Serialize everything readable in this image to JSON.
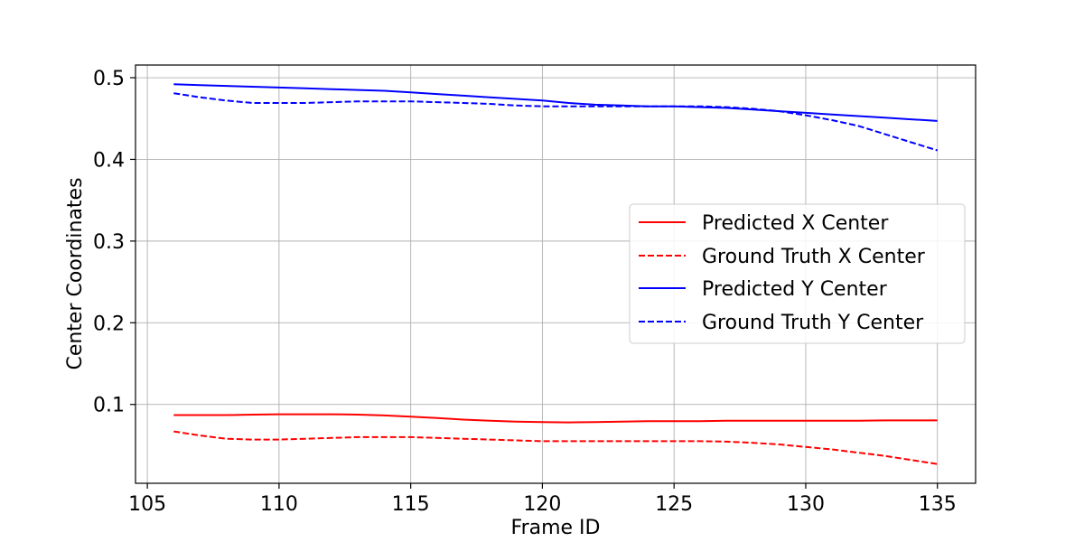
{
  "chart_data": {
    "type": "line",
    "title": "",
    "xlabel": "Frame ID",
    "ylabel": "Center Coordinates",
    "xlim": [
      104.55,
      136.45
    ],
    "ylim": [
      0.0035,
      0.5155
    ],
    "xticks": [
      105,
      110,
      115,
      120,
      125,
      130,
      135
    ],
    "yticks": [
      0.1,
      0.2,
      0.3,
      0.4,
      0.5
    ],
    "xtick_labels": [
      "105",
      "110",
      "115",
      "120",
      "125",
      "130",
      "135"
    ],
    "ytick_labels": [
      "0.1",
      "0.2",
      "0.3",
      "0.4",
      "0.5"
    ],
    "grid": true,
    "legend_position": "center-right",
    "x": [
      106,
      107,
      108,
      109,
      110,
      111,
      112,
      113,
      114,
      115,
      116,
      117,
      118,
      119,
      120,
      121,
      122,
      123,
      124,
      125,
      126,
      127,
      128,
      129,
      130,
      131,
      132,
      133,
      134,
      135
    ],
    "series": [
      {
        "name": "Predicted X Center",
        "color": "#ff0000",
        "dash": "solid",
        "values": [
          0.087,
          0.087,
          0.087,
          0.0875,
          0.088,
          0.088,
          0.088,
          0.0875,
          0.0865,
          0.085,
          0.0835,
          0.0815,
          0.08,
          0.079,
          0.0785,
          0.078,
          0.0785,
          0.079,
          0.0795,
          0.0795,
          0.0795,
          0.08,
          0.08,
          0.08,
          0.08,
          0.08,
          0.08,
          0.0805,
          0.0805,
          0.0805
        ]
      },
      {
        "name": "Ground Truth X Center",
        "color": "#ff0000",
        "dash": "dashed",
        "values": [
          0.067,
          0.062,
          0.058,
          0.057,
          0.057,
          0.058,
          0.059,
          0.06,
          0.06,
          0.06,
          0.059,
          0.058,
          0.057,
          0.056,
          0.055,
          0.055,
          0.055,
          0.055,
          0.055,
          0.055,
          0.055,
          0.0545,
          0.053,
          0.051,
          0.048,
          0.045,
          0.041,
          0.037,
          0.032,
          0.027
        ]
      },
      {
        "name": "Predicted Y Center",
        "color": "#0000ff",
        "dash": "solid",
        "values": [
          0.492,
          0.491,
          0.49,
          0.489,
          0.488,
          0.487,
          0.486,
          0.485,
          0.484,
          0.482,
          0.48,
          0.478,
          0.476,
          0.474,
          0.472,
          0.469,
          0.467,
          0.466,
          0.465,
          0.465,
          0.464,
          0.463,
          0.461,
          0.459,
          0.457,
          0.455,
          0.453,
          0.451,
          0.449,
          0.447
        ]
      },
      {
        "name": "Ground Truth Y Center",
        "color": "#0000ff",
        "dash": "dashed",
        "values": [
          0.481,
          0.476,
          0.472,
          0.469,
          0.469,
          0.469,
          0.47,
          0.471,
          0.471,
          0.471,
          0.47,
          0.469,
          0.468,
          0.466,
          0.465,
          0.465,
          0.465,
          0.465,
          0.465,
          0.465,
          0.465,
          0.464,
          0.462,
          0.459,
          0.454,
          0.448,
          0.441,
          0.431,
          0.421,
          0.411
        ]
      }
    ]
  }
}
